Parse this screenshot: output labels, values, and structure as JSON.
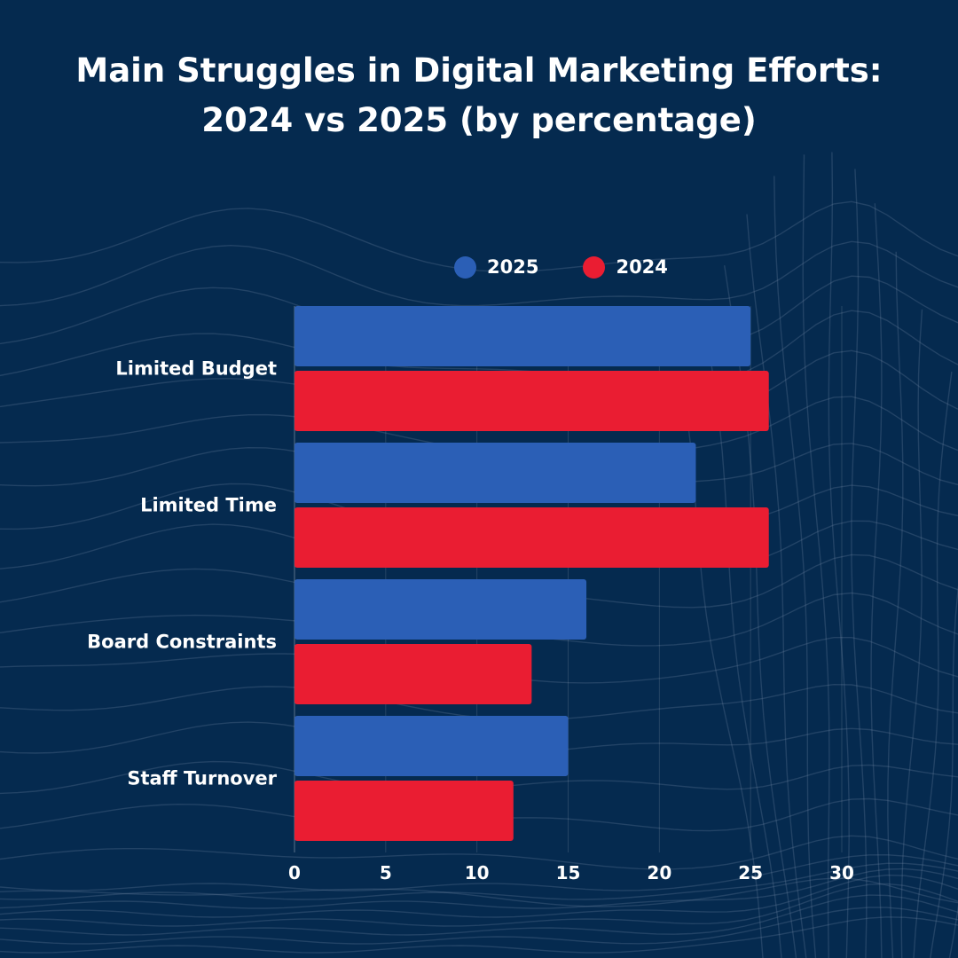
{
  "title_line1": "Main Struggles in Digital Marketing Efforts:",
  "title_line2": "2024 vs 2025 (by percentage)",
  "colors": {
    "background": "#052a4f",
    "series_2025": "#2b5fb6",
    "series_2024": "#ea1d32",
    "text": "#ffffff"
  },
  "chart_data": {
    "type": "bar",
    "orientation": "horizontal",
    "title": "Main Struggles in Digital Marketing Efforts: 2024 vs 2025 (by percentage)",
    "categories": [
      "Limited Budget",
      "Limited Time",
      "Board Constraints",
      "Staff Turnover"
    ],
    "series": [
      {
        "name": "2025",
        "color": "#2b5fb6",
        "values": [
          25,
          22,
          16,
          15
        ]
      },
      {
        "name": "2024",
        "color": "#ea1d32",
        "values": [
          26,
          26,
          13,
          12
        ]
      }
    ],
    "xticks": [
      "0",
      "5",
      "10",
      "15",
      "20",
      "25",
      "30"
    ],
    "xlim": [
      0,
      30
    ],
    "xlabel": "",
    "ylabel": "",
    "grid": "vertical",
    "legend": "top"
  }
}
